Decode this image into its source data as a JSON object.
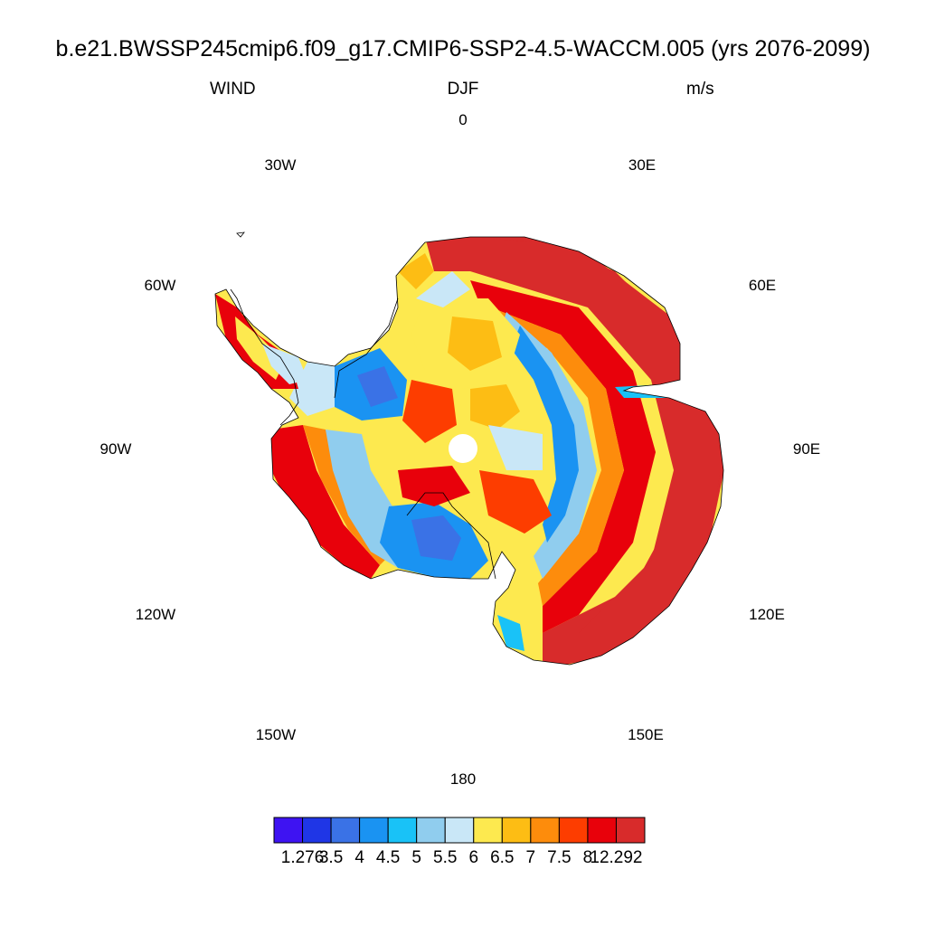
{
  "title": "b.e21.BWSSP245cmip6.f09_g17.CMIP6-SSP2-4.5-WACCM.005 (yrs 2076-2099)",
  "field": "WIND",
  "season": "DJF",
  "units": "m/s",
  "longitude_labels": [
    "0",
    "30E",
    "60E",
    "90E",
    "120E",
    "150E",
    "180",
    "150W",
    "120W",
    "90W",
    "60W",
    "30W"
  ],
  "colorbar": {
    "colors": [
      "#3e13f2",
      "#1f36e6",
      "#3a72e6",
      "#1a93f2",
      "#19c2f7",
      "#90cdee",
      "#c9e7f7",
      "#fde94f",
      "#fdbd14",
      "#fd8c0c",
      "#fd3d00",
      "#e8010b",
      "#d82b2b"
    ],
    "labels": [
      "1.276",
      "3.5",
      "4",
      "4.5",
      "5",
      "5.5",
      "6",
      "6.5",
      "7",
      "7.5",
      "8",
      "12.292"
    ]
  },
  "map": {
    "projection": "south-polar-stereographic",
    "coastlines": true,
    "summary": "Strongest winds (>8 m/s) along East Antarctic coast 30E-150E; weaker winds (4-5.5 m/s) over interior plateau and Ross/Weddell sectors"
  }
}
